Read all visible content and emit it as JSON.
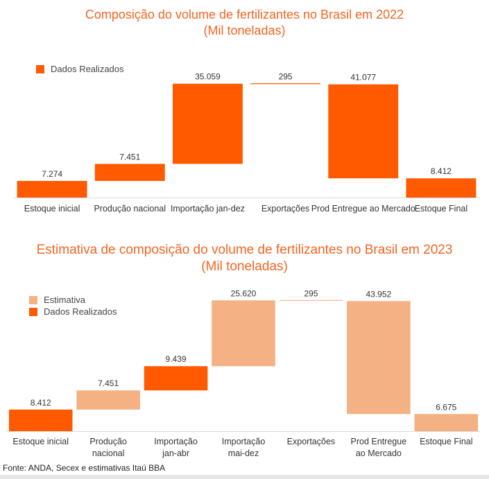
{
  "chart_data": [
    {
      "type": "waterfall",
      "title": "Composição do volume de fertilizantes no Brasil em 2022",
      "subtitle": "(Mil toneladas)",
      "legend": [
        {
          "label": "Dados Realizados",
          "color": "#ff5a00"
        }
      ],
      "legend_position": "top-left",
      "categories": [
        "Estoque inicial",
        "Produção nacional",
        "Importação jan-dez",
        "Exportações",
        "Prod Entregue ao Mercado",
        "Estoque Final"
      ],
      "bars": [
        {
          "category": "Estoque inicial",
          "value": 7274,
          "label": "7.274",
          "start": 0,
          "end": 7274,
          "series": "Dados Realizados"
        },
        {
          "category": "Produção nacional",
          "value": 7451,
          "label": "7.451",
          "start": 7274,
          "end": 14725,
          "series": "Dados Realizados"
        },
        {
          "category": "Importação jan-dez",
          "value": 35059,
          "label": "35.059",
          "start": 14725,
          "end": 49784,
          "series": "Dados Realizados"
        },
        {
          "category": "Exportações",
          "value": -295,
          "label": "295",
          "start": 49784,
          "end": 49489,
          "series": "Dados Realizados"
        },
        {
          "category": "Prod Entregue ao Mercado",
          "value": -41077,
          "label": "41.077",
          "start": 49489,
          "end": 8412,
          "series": "Dados Realizados"
        },
        {
          "category": "Estoque Final",
          "value": 8412,
          "label": "8.412",
          "start": 0,
          "end": 8412,
          "series": "Dados Realizados"
        }
      ],
      "ylim": [
        0,
        50000
      ],
      "grid": false
    },
    {
      "type": "waterfall",
      "title": "Estimativa de composição do volume de fertilizantes no Brasil em 2023",
      "subtitle": "(Mil toneladas)",
      "legend": [
        {
          "label": "Estimativa",
          "color": "#f4b183"
        },
        {
          "label": "Dados Realizados",
          "color": "#ff5a00"
        }
      ],
      "legend_position": "top-left",
      "categories": [
        "Estoque inicial",
        "Produção nacional",
        "Importação jan-abr",
        "Importação mai-dez",
        "Exportações",
        "Prod Entregue ao Mercado",
        "Estoque Final"
      ],
      "bars": [
        {
          "category": "Estoque inicial",
          "value": 8412,
          "label": "8.412",
          "start": 0,
          "end": 8412,
          "series": "Dados Realizados"
        },
        {
          "category": "Produção nacional",
          "value": 7451,
          "label": "7.451",
          "start": 8412,
          "end": 15863,
          "series": "Estimativa"
        },
        {
          "category": "Importação jan-abr",
          "value": 9439,
          "label": "9.439",
          "start": 15863,
          "end": 25302,
          "series": "Dados Realizados"
        },
        {
          "category": "Importação mai-dez",
          "value": 25620,
          "label": "25.620",
          "start": 25302,
          "end": 50922,
          "series": "Estimativa"
        },
        {
          "category": "Exportações",
          "value": -295,
          "label": "295",
          "start": 50922,
          "end": 50627,
          "series": "Estimativa"
        },
        {
          "category": "Prod Entregue ao Mercado",
          "value": -43952,
          "label": "43.952",
          "start": 50627,
          "end": 6675,
          "series": "Estimativa"
        },
        {
          "category": "Estoque Final",
          "value": 6675,
          "label": "6.675",
          "start": 0,
          "end": 6675,
          "series": "Estimativa"
        }
      ],
      "ylim": [
        0,
        51000
      ],
      "grid": false
    }
  ],
  "footer": {
    "source": "Fonte: ANDA, Secex e estimativas Itaú BBA"
  }
}
